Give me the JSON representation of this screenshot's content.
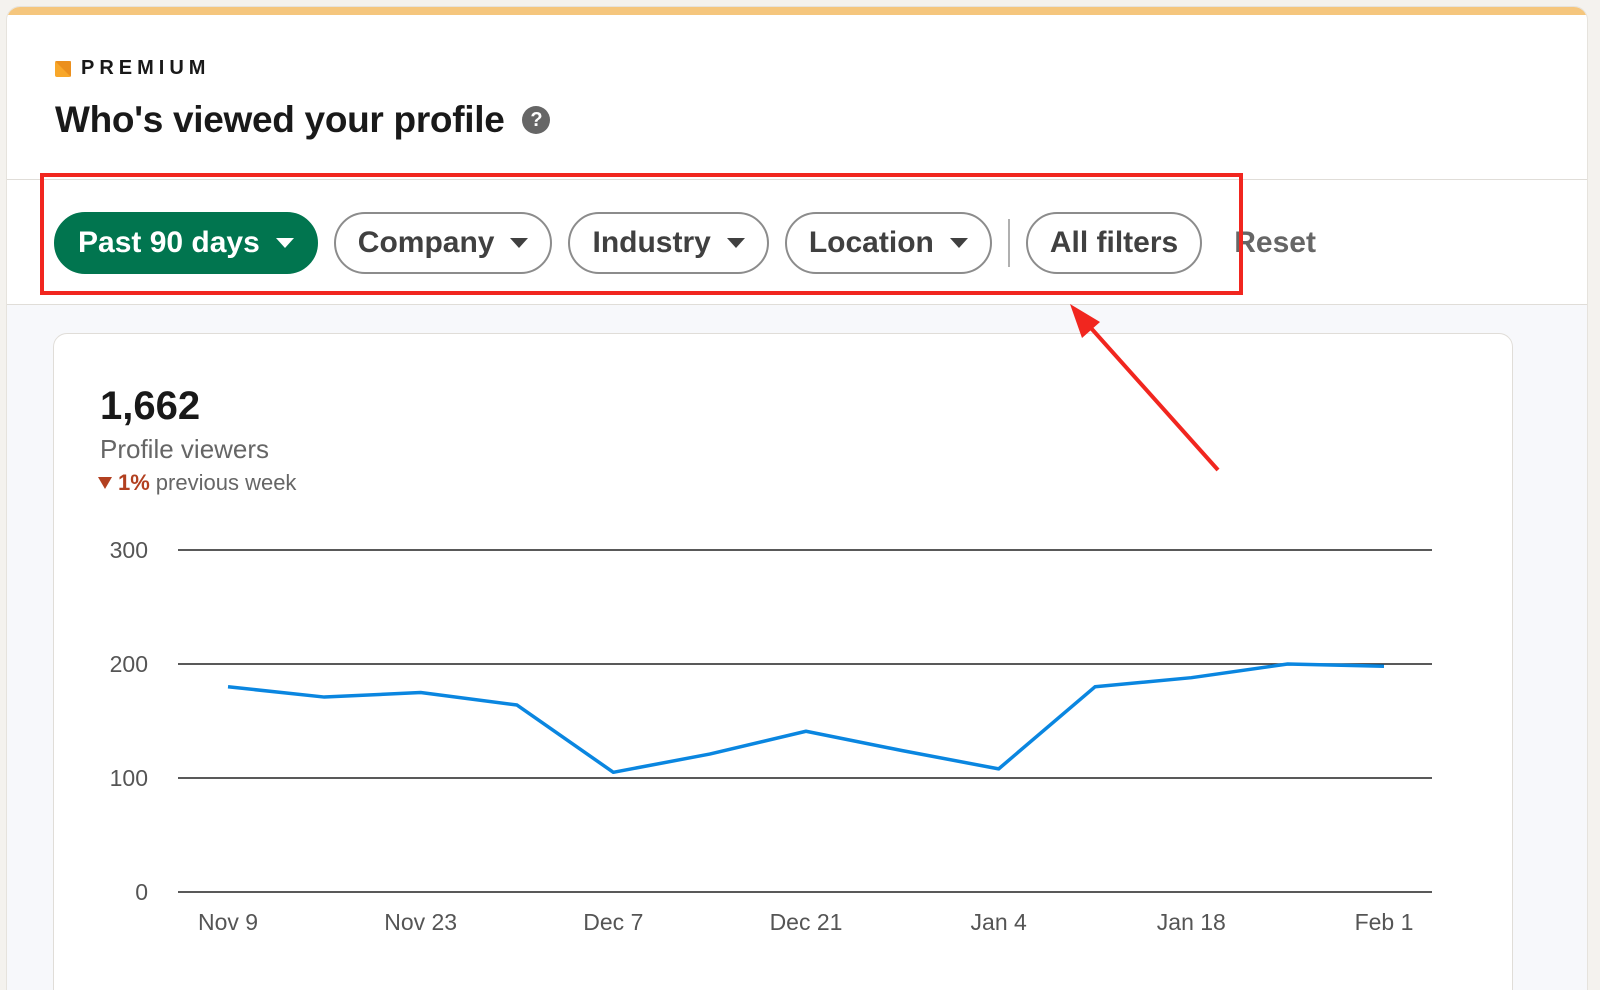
{
  "brand": {
    "premium_label": "PREMIUM",
    "accent_color": "#f5c67d",
    "mark_color": "#f8a72a"
  },
  "header": {
    "title": "Who's viewed your profile",
    "help_icon": "?"
  },
  "filters": {
    "items": [
      {
        "label": "Past 90 days",
        "active": true
      },
      {
        "label": "Company",
        "active": false
      },
      {
        "label": "Industry",
        "active": false
      },
      {
        "label": "Location",
        "active": false
      }
    ],
    "all_filters_label": "All filters",
    "reset_label": "Reset",
    "active_color": "#01754f",
    "highlight_color": "#f1261f"
  },
  "metric": {
    "value": "1,662",
    "label": "Profile viewers",
    "trend_pct": "1%",
    "trend_text": "previous week",
    "trend_color": "#b24020"
  },
  "chart_data": {
    "type": "line",
    "x_tick_labels": [
      "Nov 9",
      "Nov 23",
      "Dec 7",
      "Dec 21",
      "Jan 4",
      "Jan 18",
      "Feb 1"
    ],
    "y_ticks": [
      0,
      100,
      200,
      300
    ],
    "ylim": [
      0,
      300
    ],
    "grid": true,
    "line_color": "#0a86e0",
    "series": [
      {
        "x": [
          "Nov 9",
          "Nov 16",
          "Nov 23",
          "Nov 30",
          "Dec 7",
          "Dec 14",
          "Dec 21",
          "Dec 28",
          "Jan 4",
          "Jan 11",
          "Jan 18",
          "Jan 25",
          "Feb 1"
        ],
        "values": [
          180,
          171,
          175,
          164,
          105,
          121,
          141,
          124,
          108,
          180,
          188,
          200,
          198
        ]
      }
    ]
  }
}
